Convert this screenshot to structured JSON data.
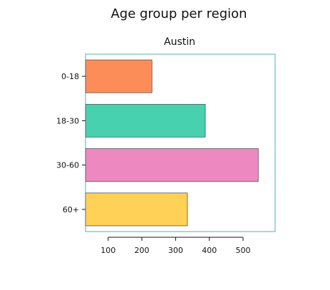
{
  "chart_data": {
    "type": "bar",
    "orientation": "horizontal",
    "title": "Age group per region",
    "subtitle": "Austin",
    "categories": [
      "0-18",
      "18-30",
      "30-60",
      "60+"
    ],
    "values": [
      230,
      388,
      545,
      335
    ],
    "xlabel": "",
    "ylabel": "",
    "xlim": [
      33,
      595
    ],
    "xticks": [
      100,
      200,
      300,
      400,
      500
    ],
    "grid": false,
    "legend": "none",
    "colors": [
      "#FC8D59",
      "#48D1AE",
      "#ED89C0",
      "#FFD156"
    ],
    "frame_color": "#4DB6AC",
    "bar_edge_color": "#555555"
  }
}
